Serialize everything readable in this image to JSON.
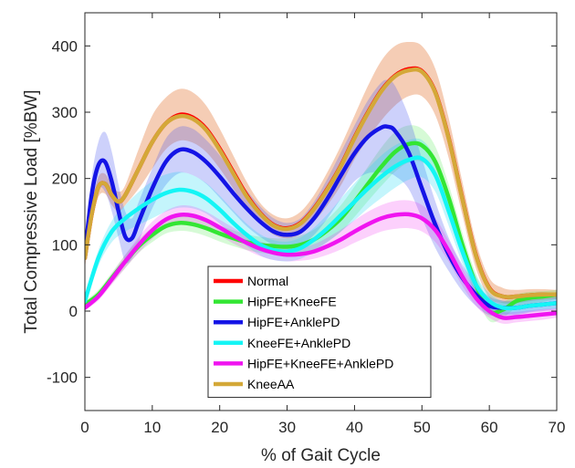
{
  "chart_data": {
    "type": "line",
    "title": "",
    "xlabel": "% of Gait Cycle",
    "ylabel": "Total Compressive Load [%BW]",
    "xlim": [
      0,
      70
    ],
    "ylim": [
      -150,
      450
    ],
    "xticks": [
      0,
      10,
      20,
      30,
      40,
      50,
      60,
      70
    ],
    "yticks": [
      -100,
      0,
      100,
      200,
      300,
      400
    ],
    "grid": false,
    "legend_position": "bottom-center",
    "series": [
      {
        "name": "Normal",
        "color": "#ff0000",
        "band_color": "#e8905a",
        "band_opacity": 0.45,
        "x": [
          0,
          1,
          2,
          3,
          4,
          5,
          6,
          8,
          10,
          12,
          14,
          16,
          18,
          20,
          22,
          24,
          26,
          28,
          30,
          32,
          34,
          36,
          38,
          40,
          42,
          44,
          46,
          48,
          50,
          52,
          54,
          56,
          58,
          60,
          62,
          64,
          66,
          68,
          70
        ],
        "y": [
          80,
          145,
          187,
          192,
          175,
          165,
          175,
          215,
          255,
          283,
          296,
          292,
          275,
          245,
          210,
          175,
          148,
          130,
          125,
          133,
          155,
          185,
          220,
          262,
          300,
          333,
          355,
          365,
          362,
          330,
          260,
          170,
          85,
          35,
          22,
          22,
          24,
          25,
          25
        ],
        "upper": [
          95,
          160,
          202,
          207,
          190,
          180,
          190,
          245,
          295,
          322,
          335,
          330,
          310,
          275,
          235,
          195,
          163,
          145,
          140,
          150,
          175,
          210,
          250,
          295,
          340,
          378,
          400,
          406,
          400,
          365,
          290,
          195,
          105,
          50,
          35,
          32,
          33,
          33,
          32
        ],
        "lower": [
          65,
          130,
          172,
          177,
          160,
          150,
          160,
          185,
          215,
          244,
          257,
          254,
          240,
          215,
          185,
          155,
          133,
          115,
          110,
          116,
          135,
          160,
          190,
          229,
          260,
          288,
          310,
          324,
          324,
          295,
          230,
          145,
          65,
          20,
          12,
          12,
          15,
          17,
          18
        ]
      },
      {
        "name": "HipFE+KneeFE",
        "color": "#33e633",
        "band_color": "#33e633",
        "band_opacity": 0.2,
        "x": [
          0,
          2,
          4,
          6,
          8,
          10,
          12,
          14,
          16,
          18,
          20,
          22,
          24,
          26,
          28,
          30,
          32,
          34,
          36,
          38,
          40,
          42,
          44,
          46,
          48,
          50,
          52,
          54,
          56,
          58,
          60,
          62,
          64,
          66,
          68,
          70
        ],
        "y": [
          10,
          25,
          50,
          75,
          98,
          115,
          128,
          133,
          131,
          125,
          117,
          110,
          104,
          100,
          98,
          97,
          100,
          108,
          122,
          140,
          165,
          192,
          218,
          240,
          252,
          250,
          225,
          170,
          100,
          40,
          0,
          2,
          15,
          20,
          22,
          25
        ],
        "upper": [
          15,
          32,
          58,
          85,
          108,
          126,
          139,
          145,
          143,
          137,
          129,
          122,
          116,
          112,
          110,
          110,
          114,
          123,
          139,
          160,
          188,
          218,
          247,
          270,
          280,
          275,
          248,
          190,
          118,
          56,
          15,
          14,
          25,
          29,
          30,
          32
        ],
        "lower": [
          5,
          18,
          42,
          65,
          88,
          104,
          117,
          121,
          119,
          113,
          105,
          98,
          92,
          88,
          86,
          84,
          86,
          93,
          105,
          120,
          142,
          166,
          189,
          210,
          224,
          225,
          202,
          150,
          82,
          24,
          -15,
          -10,
          5,
          11,
          14,
          18
        ]
      },
      {
        "name": "HipFE+AnklePD",
        "color": "#1414e6",
        "band_color": "#4a5af0",
        "band_opacity": 0.28,
        "x": [
          0,
          1,
          2,
          3,
          4,
          5,
          6,
          7,
          8,
          10,
          12,
          14,
          16,
          18,
          20,
          22,
          24,
          26,
          28,
          30,
          32,
          34,
          36,
          38,
          40,
          42,
          44,
          45,
          46,
          48,
          50,
          52,
          54,
          56,
          58,
          60,
          62,
          64,
          66,
          68,
          70
        ],
        "y": [
          85,
          175,
          220,
          225,
          195,
          150,
          112,
          110,
          135,
          185,
          225,
          243,
          240,
          225,
          203,
          178,
          155,
          135,
          120,
          115,
          120,
          140,
          170,
          205,
          238,
          263,
          277,
          278,
          272,
          240,
          185,
          130,
          85,
          50,
          25,
          8,
          5,
          5,
          8,
          10,
          12
        ],
        "upper": [
          95,
          200,
          255,
          270,
          240,
          190,
          150,
          140,
          165,
          215,
          260,
          278,
          275,
          258,
          235,
          207,
          182,
          158,
          140,
          133,
          140,
          165,
          200,
          240,
          280,
          318,
          345,
          348,
          340,
          295,
          230,
          165,
          110,
          70,
          42,
          22,
          16,
          16,
          18,
          20,
          22
        ],
        "lower": [
          75,
          150,
          185,
          180,
          150,
          110,
          74,
          80,
          105,
          155,
          190,
          208,
          205,
          192,
          171,
          149,
          128,
          112,
          100,
          97,
          100,
          115,
          140,
          170,
          196,
          208,
          209,
          208,
          204,
          185,
          140,
          95,
          60,
          30,
          8,
          -6,
          -6,
          -6,
          -2,
          0,
          2
        ]
      },
      {
        "name": "KneeFE+AnklePD",
        "color": "#14f5f5",
        "band_color": "#14d6f5",
        "band_opacity": 0.25,
        "x": [
          0,
          2,
          4,
          6,
          8,
          10,
          12,
          14,
          16,
          18,
          20,
          22,
          24,
          26,
          28,
          30,
          32,
          34,
          36,
          38,
          40,
          42,
          44,
          46,
          48,
          50,
          52,
          54,
          56,
          58,
          60,
          62,
          64,
          66,
          68,
          70
        ],
        "y": [
          15,
          80,
          120,
          140,
          155,
          168,
          178,
          183,
          180,
          170,
          153,
          133,
          115,
          100,
          92,
          90,
          95,
          108,
          125,
          145,
          165,
          185,
          203,
          218,
          228,
          230,
          205,
          150,
          90,
          40,
          15,
          5,
          5,
          8,
          10,
          12
        ],
        "upper": [
          22,
          92,
          136,
          160,
          180,
          196,
          206,
          210,
          205,
          193,
          174,
          152,
          132,
          116,
          107,
          105,
          111,
          126,
          146,
          170,
          193,
          215,
          235,
          250,
          258,
          258,
          230,
          172,
          108,
          54,
          27,
          15,
          14,
          17,
          18,
          20
        ],
        "lower": [
          8,
          68,
          104,
          120,
          130,
          140,
          150,
          156,
          155,
          147,
          132,
          114,
          98,
          84,
          77,
          75,
          79,
          90,
          104,
          120,
          137,
          155,
          171,
          186,
          198,
          202,
          180,
          128,
          72,
          26,
          3,
          -5,
          -4,
          -1,
          2,
          4
        ]
      },
      {
        "name": "HipFE+KneeFE+AnklePD",
        "color": "#f014f0",
        "band_color": "#f014f0",
        "band_opacity": 0.2,
        "x": [
          0,
          2,
          4,
          6,
          8,
          10,
          12,
          14,
          16,
          18,
          20,
          22,
          24,
          26,
          28,
          30,
          32,
          34,
          36,
          38,
          40,
          42,
          44,
          46,
          48,
          50,
          52,
          54,
          56,
          58,
          60,
          62,
          64,
          66,
          68,
          70
        ],
        "y": [
          5,
          22,
          48,
          75,
          100,
          122,
          138,
          145,
          144,
          137,
          126,
          114,
          103,
          94,
          88,
          85,
          86,
          90,
          98,
          108,
          120,
          131,
          140,
          145,
          146,
          140,
          122,
          90,
          52,
          20,
          0,
          -10,
          -9,
          -7,
          -5,
          -3
        ],
        "upper": [
          9,
          28,
          56,
          85,
          112,
          135,
          151,
          159,
          158,
          150,
          138,
          126,
          114,
          105,
          99,
          95,
          96,
          101,
          111,
          123,
          137,
          150,
          160,
          166,
          167,
          160,
          140,
          106,
          66,
          32,
          10,
          -1,
          -1,
          1,
          3,
          4
        ],
        "lower": [
          1,
          16,
          40,
          65,
          88,
          109,
          125,
          131,
          130,
          124,
          114,
          102,
          92,
          83,
          77,
          75,
          76,
          79,
          85,
          93,
          103,
          112,
          120,
          124,
          125,
          120,
          104,
          74,
          38,
          8,
          -10,
          -19,
          -17,
          -15,
          -13,
          -10
        ]
      },
      {
        "name": "KneeAA",
        "color": "#d4a838",
        "band_color": "#d4a838",
        "band_opacity": 0.0,
        "x": [
          0,
          1,
          2,
          3,
          4,
          5,
          6,
          8,
          10,
          12,
          14,
          16,
          18,
          20,
          22,
          24,
          26,
          28,
          30,
          32,
          34,
          36,
          38,
          40,
          42,
          44,
          46,
          48,
          50,
          52,
          54,
          56,
          58,
          60,
          62,
          64,
          66,
          68,
          70
        ],
        "y": [
          80,
          145,
          187,
          192,
          175,
          165,
          175,
          215,
          255,
          283,
          294,
          290,
          273,
          243,
          208,
          173,
          147,
          129,
          124,
          132,
          154,
          184,
          219,
          261,
          299,
          332,
          354,
          363,
          361,
          329,
          259,
          169,
          84,
          34,
          22,
          22,
          24,
          25,
          25
        ],
        "upper": [],
        "lower": []
      }
    ]
  }
}
